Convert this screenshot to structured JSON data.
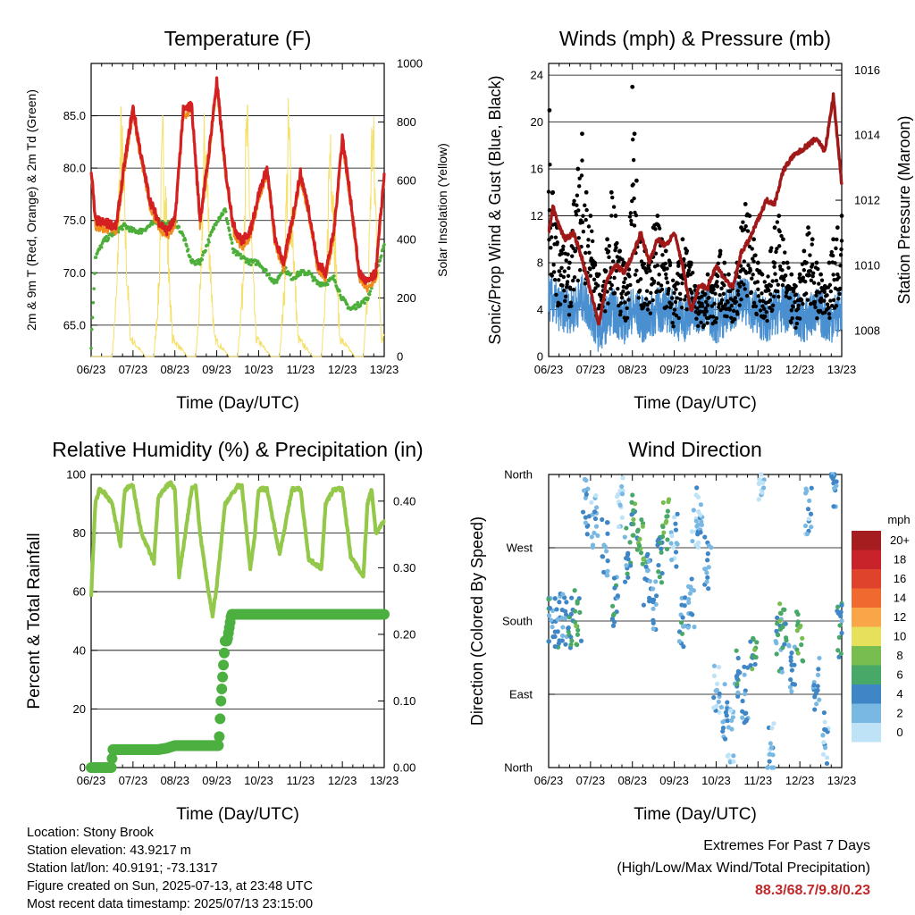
{
  "colors": {
    "temp_2m": "#d42020",
    "temp_9m": "#f08c1e",
    "dewpoint": "#4caf3a",
    "solar": "#f5e06a",
    "wind": "#4a90d0",
    "gust": "#000000",
    "pressure": "#a01818",
    "rh": "#94c84a",
    "precip": "#4cb040"
  },
  "chart_data": [
    {
      "id": "temperature",
      "type": "line",
      "title": "Temperature (F)",
      "xlabel": "Time (Day/UTC)",
      "ylabel": "2m & 9m T (Red, Orange) & 2m Td (Green)",
      "y2label": "Solar Insolation (Yellow)",
      "x_ticks": [
        "06/23",
        "07/23",
        "08/23",
        "09/23",
        "10/23",
        "11/23",
        "12/23",
        "13/23"
      ],
      "ylim": [
        62,
        90
      ],
      "y_ticks": [
        65.0,
        70.0,
        75.0,
        80.0,
        85.0
      ],
      "y2lim": [
        0,
        1000
      ],
      "y2_ticks": [
        0,
        200,
        400,
        600,
        800,
        1000
      ],
      "grid": true,
      "series": [
        {
          "name": "2m T",
          "axis": "left",
          "x": [
            6.0,
            6.1,
            6.3,
            6.6,
            6.8,
            7.0,
            7.2,
            7.4,
            7.6,
            7.8,
            8.0,
            8.2,
            8.4,
            8.6,
            8.8,
            9.0,
            9.2,
            9.4,
            9.6,
            9.8,
            10.0,
            10.2,
            10.4,
            10.6,
            10.8,
            11.0,
            11.2,
            11.4,
            11.6,
            11.8,
            12.0,
            12.2,
            12.4,
            12.6,
            12.8,
            13.0
          ],
          "y": [
            80.0,
            75.0,
            74.8,
            74.5,
            80.5,
            85.8,
            81.0,
            77.0,
            75.0,
            74.0,
            75.0,
            85.5,
            86.0,
            75.0,
            81.0,
            88.3,
            80.0,
            74.5,
            73.0,
            74.0,
            77.5,
            80.0,
            73.0,
            71.0,
            75.0,
            79.5,
            76.0,
            71.0,
            70.0,
            74.0,
            83.0,
            77.0,
            70.0,
            69.0,
            70.0,
            79.5
          ]
        },
        {
          "name": "2m Td",
          "axis": "left",
          "x": [
            6.0,
            6.1,
            6.3,
            6.6,
            6.8,
            7.0,
            7.2,
            7.4,
            7.6,
            7.8,
            8.0,
            8.2,
            8.4,
            8.6,
            8.8,
            9.0,
            9.2,
            9.4,
            9.6,
            9.8,
            10.0,
            10.2,
            10.4,
            10.6,
            10.8,
            11.0,
            11.2,
            11.4,
            11.6,
            11.8,
            12.0,
            12.2,
            12.4,
            12.6,
            12.8,
            13.0
          ],
          "y": [
            63.0,
            71.5,
            73.0,
            74.0,
            74.5,
            74.0,
            74.0,
            74.5,
            75.0,
            74.5,
            75.0,
            73.5,
            71.0,
            71.0,
            73.0,
            75.0,
            76.0,
            72.0,
            71.5,
            71.0,
            71.0,
            70.0,
            69.0,
            70.5,
            69.5,
            70.0,
            70.0,
            69.0,
            69.0,
            69.5,
            67.5,
            66.5,
            67.0,
            67.5,
            70.0,
            72.5
          ]
        },
        {
          "name": "Solar",
          "axis": "right",
          "x": [
            6.0,
            6.3,
            6.5,
            6.62,
            6.66,
            6.72,
            6.78,
            6.86,
            6.94,
            7.3,
            7.5,
            7.62,
            7.66,
            7.72,
            7.78,
            7.86,
            7.94,
            8.3,
            8.5,
            8.62,
            8.66,
            8.72,
            8.78,
            8.86,
            8.94,
            9.3,
            9.5,
            9.62,
            9.66,
            9.72,
            9.78,
            9.86,
            9.94,
            10.3,
            10.5,
            10.62,
            10.66,
            10.72,
            10.78,
            10.86,
            10.94,
            11.3,
            11.5,
            11.62,
            11.66,
            11.72,
            11.78,
            11.86,
            11.94,
            12.3,
            12.5,
            12.62,
            12.66,
            12.72,
            12.78,
            12.86,
            12.94,
            13.0
          ],
          "y": [
            0,
            0,
            0,
            300,
            650,
            930,
            700,
            350,
            80,
            0,
            0,
            300,
            650,
            900,
            700,
            350,
            80,
            0,
            0,
            300,
            650,
            950,
            700,
            350,
            80,
            0,
            0,
            300,
            650,
            960,
            700,
            350,
            80,
            0,
            0,
            300,
            650,
            950,
            700,
            350,
            80,
            0,
            0,
            300,
            650,
            980,
            700,
            350,
            80,
            0,
            0,
            300,
            650,
            980,
            700,
            350,
            80,
            100
          ]
        }
      ]
    },
    {
      "id": "winds",
      "type": "scatter",
      "title": "Winds (mph) & Pressure (mb)",
      "xlabel": "Time (Day/UTC)",
      "ylabel": "Sonic/Prop Wind & Gust (Blue, Black)",
      "y2label": "Station Pressure (Maroon)",
      "x_ticks": [
        "06/23",
        "07/23",
        "08/23",
        "09/23",
        "10/23",
        "11/23",
        "12/23",
        "13/23"
      ],
      "ylim": [
        0,
        25
      ],
      "y_ticks": [
        0,
        4,
        8,
        12,
        16,
        20,
        24
      ],
      "y2lim": [
        1007.2,
        1016.2
      ],
      "y2_ticks": [
        1008,
        1010,
        1012,
        1014,
        1016
      ],
      "grid": true,
      "series": [
        {
          "name": "Wind",
          "axis": "left",
          "x": [
            6.0,
            6.3,
            6.6,
            6.8,
            7.0,
            7.2,
            7.5,
            7.8,
            8.0,
            8.3,
            8.6,
            8.9,
            9.2,
            9.5,
            9.8,
            10.0,
            10.3,
            10.6,
            10.9,
            11.2,
            11.5,
            11.8,
            12.1,
            12.4,
            12.7,
            13.0
          ],
          "y": [
            5,
            4,
            4,
            5,
            4,
            2,
            4,
            3,
            4,
            3,
            4,
            4,
            3,
            4,
            4,
            3,
            4,
            5,
            4,
            3,
            4,
            4,
            3,
            4,
            3,
            4
          ]
        },
        {
          "name": "Gust",
          "axis": "left",
          "x": [
            6.02,
            6.1,
            6.2,
            6.3,
            6.4,
            6.5,
            6.6,
            6.7,
            6.8,
            6.9,
            7.0,
            7.1,
            7.2,
            7.3,
            7.4,
            7.5,
            7.6,
            7.7,
            7.8,
            7.9,
            8.0,
            8.05,
            8.1,
            8.2,
            8.3,
            8.4,
            8.5,
            8.6,
            8.7,
            8.8,
            8.9,
            9.0,
            9.1,
            9.2,
            9.3,
            9.4,
            9.5,
            9.6,
            9.7,
            9.8,
            9.9,
            10.0,
            10.1,
            10.2,
            10.3,
            10.4,
            10.5,
            10.6,
            10.7,
            10.8,
            10.9,
            11.0,
            11.1,
            11.2,
            11.3,
            11.4,
            11.5,
            11.6,
            11.7,
            11.8,
            11.9,
            12.0,
            12.1,
            12.2,
            12.3,
            12.4,
            12.5,
            12.6,
            12.7,
            12.8,
            12.9,
            13.0
          ],
          "y": [
            21,
            14,
            11,
            9,
            10,
            8,
            13,
            16,
            19,
            14,
            12,
            8,
            7,
            6,
            10,
            14,
            12,
            9,
            8,
            7,
            23,
            19,
            15,
            10,
            9,
            8,
            11,
            12,
            10,
            9,
            8,
            6,
            8,
            10,
            9,
            8,
            6,
            5,
            6,
            7,
            6,
            7,
            9,
            8,
            7,
            6,
            8,
            11,
            13,
            12,
            10,
            8,
            7,
            6,
            9,
            11,
            12,
            10,
            8,
            7,
            6,
            7,
            9,
            11,
            10,
            8,
            7,
            6,
            8,
            10,
            11,
            12
          ]
        },
        {
          "name": "Pressure",
          "axis": "right",
          "x": [
            6.0,
            6.1,
            6.25,
            6.4,
            6.6,
            6.8,
            7.0,
            7.2,
            7.4,
            7.6,
            7.8,
            8.0,
            8.2,
            8.4,
            8.6,
            8.8,
            9.0,
            9.2,
            9.4,
            9.6,
            9.8,
            10.0,
            10.2,
            10.4,
            10.6,
            10.8,
            11.0,
            11.2,
            11.4,
            11.6,
            11.8,
            12.0,
            12.2,
            12.4,
            12.6,
            12.8,
            13.0
          ],
          "y": [
            1011,
            1011.8,
            1011.2,
            1010.8,
            1011.0,
            1010.2,
            1009.2,
            1008.2,
            1009.6,
            1010.0,
            1009.8,
            1010.3,
            1011.0,
            1010.1,
            1010.8,
            1010.6,
            1011.0,
            1010.0,
            1008.6,
            1009.4,
            1009.3,
            1010.0,
            1009.6,
            1009.3,
            1010.4,
            1010.8,
            1011.4,
            1012.0,
            1011.9,
            1012.9,
            1013.3,
            1013.5,
            1013.7,
            1013.9,
            1013.5,
            1015.2,
            1012.5
          ]
        }
      ]
    },
    {
      "id": "humidity",
      "type": "line",
      "title": "Relative Humidity (%) & Precipitation (in)",
      "xlabel": "Time (Day/UTC)",
      "ylabel": "Percent & Total Rainfall",
      "x_ticks": [
        "06/23",
        "07/23",
        "08/23",
        "09/23",
        "10/23",
        "11/23",
        "12/23",
        "13/23"
      ],
      "ylim": [
        0,
        100
      ],
      "y_ticks": [
        0,
        20,
        40,
        60,
        80,
        100
      ],
      "y2lim": [
        0,
        0.44
      ],
      "y2_ticks": [
        0.0,
        0.1,
        0.2,
        0.3,
        0.4
      ],
      "y2_tick_labels": [
        "0.00",
        "0.10",
        "0.20",
        "0.30",
        "0.40"
      ],
      "grid": true,
      "series": [
        {
          "name": "RH",
          "axis": "left",
          "x": [
            6.0,
            6.1,
            6.2,
            6.3,
            6.5,
            6.7,
            6.8,
            6.9,
            7.0,
            7.2,
            7.5,
            7.6,
            7.8,
            7.9,
            8.0,
            8.1,
            8.2,
            8.4,
            8.5,
            8.6,
            8.8,
            8.9,
            9.0,
            9.2,
            9.5,
            9.6,
            9.8,
            9.9,
            10.0,
            10.2,
            10.5,
            10.6,
            10.8,
            11.0,
            11.2,
            11.5,
            11.6,
            11.8,
            12.0,
            12.2,
            12.5,
            12.6,
            12.7,
            12.8,
            13.0
          ],
          "y": [
            58,
            90,
            95,
            94,
            90,
            76,
            94,
            96,
            96,
            80,
            70,
            92,
            96,
            97,
            95,
            65,
            75,
            95,
            96,
            80,
            60,
            52,
            62,
            90,
            96,
            96,
            68,
            78,
            95,
            95,
            73,
            80,
            95,
            95,
            71,
            68,
            90,
            95,
            95,
            72,
            65,
            90,
            95,
            80,
            84
          ]
        },
        {
          "name": "Precipitation",
          "axis": "right",
          "x": [
            6.0,
            6.48,
            6.52,
            7.3,
            7.6,
            7.8,
            8.0,
            8.8,
            9.05,
            9.1,
            9.2,
            9.25,
            9.35,
            9.45,
            13.0
          ],
          "y": [
            0.0,
            0.0,
            0.027,
            0.027,
            0.027,
            0.029,
            0.033,
            0.033,
            0.033,
            0.1,
            0.19,
            0.19,
            0.23,
            0.23,
            0.23
          ]
        }
      ]
    },
    {
      "id": "winddir",
      "type": "scatter",
      "title": "Wind Direction",
      "xlabel": "Time (Day/UTC)",
      "ylabel": "Direction (Colored By Speed)",
      "x_ticks": [
        "06/23",
        "07/23",
        "08/23",
        "09/23",
        "10/23",
        "11/23",
        "12/23",
        "13/23"
      ],
      "y_ticks": [
        "North",
        "East",
        "South",
        "West",
        "North"
      ],
      "ylim": [
        0,
        360
      ],
      "grid": true,
      "legend": {
        "title": "mph",
        "labels": [
          "20+",
          "18",
          "16",
          "14",
          "12",
          "10",
          "8",
          "6",
          "4",
          "2",
          "0"
        ],
        "colors": [
          "#a51d1f",
          "#c8232a",
          "#e0432c",
          "#f0692e",
          "#f8a648",
          "#e6e05a",
          "#78bd50",
          "#48a868",
          "#3f86c6",
          "#7ab8e4",
          "#bfe3f6"
        ]
      },
      "series": [
        {
          "name": "Direction",
          "x": [
            6.05,
            6.2,
            6.35,
            6.5,
            6.7,
            6.9,
            7.1,
            7.35,
            7.6,
            7.7,
            7.9,
            8.05,
            8.2,
            8.35,
            8.5,
            8.65,
            8.8,
            9.0,
            9.2,
            9.4,
            9.5,
            9.6,
            9.8,
            10.0,
            10.2,
            10.35,
            10.5,
            10.7,
            10.9,
            11.1,
            11.3,
            11.5,
            11.6,
            11.8,
            12.0,
            12.2,
            12.4,
            12.6,
            12.8,
            12.95
          ],
          "y": [
            180,
            178,
            182,
            176,
            185,
            320,
            300,
            270,
            200,
            330,
            260,
            310,
            280,
            230,
            200,
            260,
            300,
            280,
            180,
            200,
            300,
            320,
            250,
            100,
            70,
            40,
            120,
            90,
            130,
            340,
            20,
            150,
            180,
            120,
            160,
            320,
            100,
            40,
            350,
            170
          ],
          "speed": [
            4,
            4,
            3,
            5,
            6,
            3,
            2,
            3,
            4,
            1,
            4,
            6,
            7,
            4,
            3,
            5,
            7,
            2,
            4,
            3,
            1,
            2,
            3,
            2,
            3,
            1,
            4,
            3,
            6,
            1,
            2,
            4,
            6,
            3,
            7,
            2,
            3,
            2,
            3,
            4
          ]
        }
      ]
    }
  ],
  "info": {
    "location": "Location: Stony Brook",
    "elevation": "Station elevation: 43.9217 m",
    "latlon": "Station lat/lon: 40.9191; -73.1317",
    "created": "Figure created on Sun, 2025-07-13, at 23:48 UTC",
    "recent": "Most recent data timestamp: 2025/07/13 23:15:00"
  },
  "extremes": {
    "line1": "Extremes For Past 7 Days",
    "line2": "(High/Low/Max Wind/Total Precipitation)",
    "values": "88.3/68.7/9.8/0.23"
  }
}
